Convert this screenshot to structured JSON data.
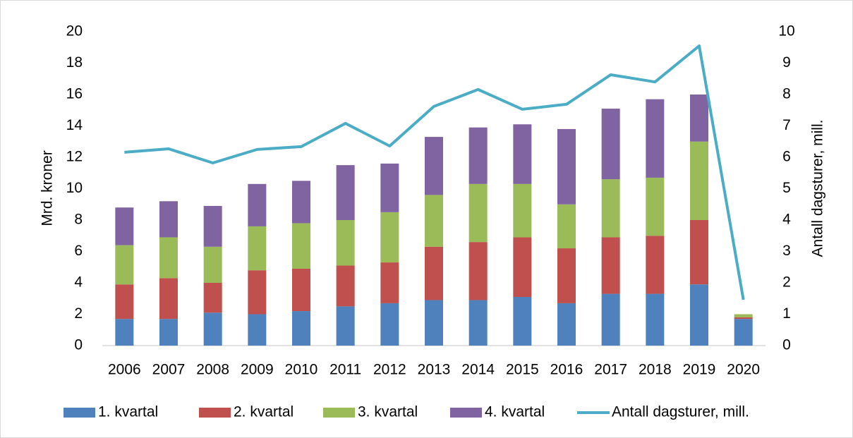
{
  "chart_data": {
    "type": "bar",
    "stacked": true,
    "categories": [
      "2006",
      "2007",
      "2008",
      "2009",
      "2010",
      "2011",
      "2012",
      "2013",
      "2014",
      "2015",
      "2016",
      "2017",
      "2018",
      "2019",
      "2020"
    ],
    "y_label": "Mrd. kroner",
    "y2_label": "Antall dagsturer, mill.",
    "ylim": [
      0,
      20
    ],
    "yticks": [
      0,
      2,
      4,
      6,
      8,
      10,
      12,
      14,
      16,
      18,
      20
    ],
    "y2lim": [
      0,
      10
    ],
    "y2ticks": [
      0,
      1,
      2,
      3,
      4,
      5,
      6,
      7,
      8,
      9,
      10
    ],
    "grid": false,
    "legend": "bottom",
    "series": [
      {
        "name": "1. kvartal",
        "color": "#4f81bd",
        "values": [
          1.7,
          1.7,
          2.1,
          2.0,
          2.2,
          2.5,
          2.7,
          2.9,
          2.9,
          3.1,
          2.7,
          3.3,
          3.3,
          3.9,
          1.7
        ]
      },
      {
        "name": "2. kvartal",
        "color": "#c0504d",
        "values": [
          2.2,
          2.6,
          1.9,
          2.8,
          2.7,
          2.6,
          2.6,
          3.4,
          3.7,
          3.8,
          3.5,
          3.6,
          3.7,
          4.1,
          0.1
        ]
      },
      {
        "name": "3. kvartal",
        "color": "#9bbb59",
        "values": [
          2.5,
          2.6,
          2.3,
          2.8,
          2.9,
          2.9,
          3.2,
          3.3,
          3.7,
          3.4,
          2.8,
          3.7,
          3.7,
          5.0,
          0.2
        ]
      },
      {
        "name": "4. kvartal",
        "color": "#8064a2",
        "values": [
          2.4,
          2.3,
          2.6,
          2.7,
          2.7,
          3.5,
          3.1,
          3.7,
          3.6,
          3.8,
          4.8,
          4.5,
          5.0,
          3.0,
          0
        ]
      },
      {
        "name": "Antall dagsturer, mill.",
        "color": "#4bacc6",
        "type": "line",
        "axis": "y2",
        "values": [
          6.16,
          6.27,
          5.82,
          6.25,
          6.34,
          7.08,
          6.36,
          7.62,
          8.16,
          7.53,
          7.69,
          8.63,
          8.4,
          9.55,
          1.46
        ]
      }
    ]
  }
}
